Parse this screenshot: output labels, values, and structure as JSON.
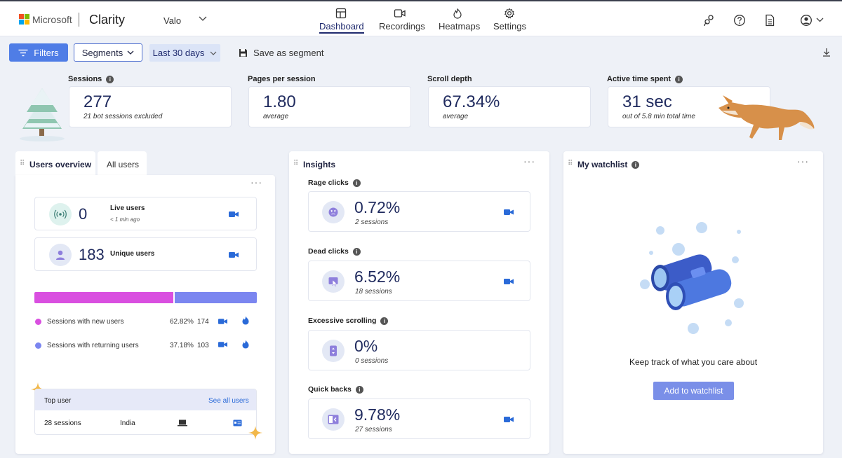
{
  "header": {
    "brand": "Microsoft",
    "product": "Clarity",
    "project": "Valo",
    "tabs": [
      {
        "label": "Dashboard",
        "icon": "dashboard-icon",
        "active": true
      },
      {
        "label": "Recordings",
        "icon": "video-icon",
        "active": false
      },
      {
        "label": "Heatmaps",
        "icon": "flame-icon",
        "active": false
      },
      {
        "label": "Settings",
        "icon": "gear-icon",
        "active": false
      }
    ]
  },
  "toolbar": {
    "filters": "Filters",
    "segments": "Segments",
    "date_range": "Last 30 days",
    "save_segment": "Save as segment"
  },
  "stats": [
    {
      "label": "Sessions",
      "value": "277",
      "sub": "21 bot sessions excluded"
    },
    {
      "label": "Pages per session",
      "value": "1.80",
      "sub": "average"
    },
    {
      "label": "Scroll depth",
      "value": "67.34%",
      "sub": "average"
    },
    {
      "label": "Active time spent",
      "value": "31 sec",
      "sub": "out of 5.8 min total time"
    }
  ],
  "users_panel": {
    "tab_active": "Users overview",
    "tab_other": "All users",
    "live": {
      "count": "0",
      "label": "Live users",
      "sub": "< 1 min ago"
    },
    "unique": {
      "count": "183",
      "label": "Unique users"
    },
    "split": {
      "new_share": 0.6282,
      "new_color": "#d94fe0",
      "returning_color": "#7b86f0"
    },
    "new_users": {
      "label": "Sessions with new users",
      "pct": "62.82%",
      "count": "174"
    },
    "returning_users": {
      "label": "Sessions with returning users",
      "pct": "37.18%",
      "count": "103"
    },
    "top_user": {
      "title": "Top user",
      "link": "See all users",
      "sessions": "28 sessions",
      "country": "India"
    }
  },
  "insights": {
    "title": "Insights",
    "items": [
      {
        "label": "Rage clicks",
        "pct": "0.72%",
        "sessions": "2 sessions"
      },
      {
        "label": "Dead clicks",
        "pct": "6.52%",
        "sessions": "18 sessions"
      },
      {
        "label": "Excessive scrolling",
        "pct": "0%",
        "sessions": "0 sessions"
      },
      {
        "label": "Quick backs",
        "pct": "9.78%",
        "sessions": "27 sessions"
      }
    ]
  },
  "watchlist": {
    "title": "My watchlist",
    "message": "Keep track of what you care about",
    "button": "Add to watchlist"
  },
  "colors": {
    "accent": "#4f7de6",
    "camera": "#2a6ad8"
  }
}
